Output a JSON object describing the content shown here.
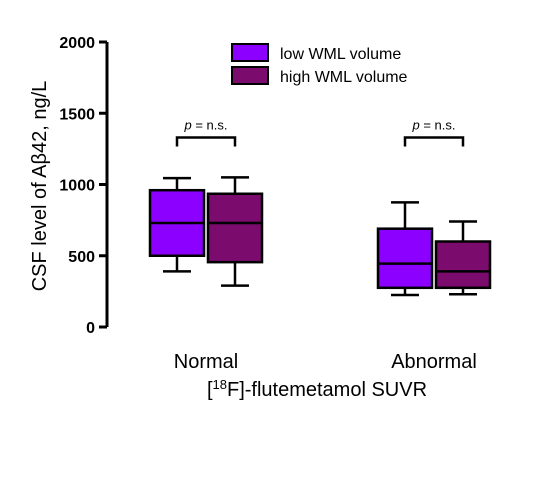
{
  "chart_data": {
    "type": "box",
    "ylabel_prefix": "CSF level of A",
    "ylabel_symbol": "β",
    "ylabel_suffix": "42, ng/L",
    "xlabel_open": "[",
    "xlabel_sup": "18",
    "xlabel_rest": "F]-flutemetamol SUVR",
    "ylim": [
      0,
      2000
    ],
    "yticks": [
      "0",
      "500",
      "1000",
      "1500",
      "2000"
    ],
    "ytick_values": [
      0,
      500,
      1000,
      1500,
      2000
    ],
    "categories": [
      "Normal",
      "Abnormal"
    ],
    "legend_position": "top-right",
    "series": [
      {
        "name": "low WML volume",
        "color": "#8B00FF",
        "boxes": [
          {
            "min": 390,
            "q1": 500,
            "median": 730,
            "q3": 960,
            "max": 1045
          },
          {
            "min": 225,
            "q1": 275,
            "median": 445,
            "q3": 690,
            "max": 875
          }
        ]
      },
      {
        "name": "high WML volume",
        "color": "#7B0C6E",
        "boxes": [
          {
            "min": 290,
            "q1": 455,
            "median": 730,
            "q3": 935,
            "max": 1050
          },
          {
            "min": 230,
            "q1": 275,
            "median": 390,
            "q3": 600,
            "max": 740
          }
        ]
      }
    ],
    "annotations": [
      {
        "p_symbol": "p",
        "p_text": " = n.s.",
        "category": "Normal",
        "y": 1330
      },
      {
        "p_symbol": "p",
        "p_text": " = n.s.",
        "category": "Abnormal",
        "y": 1330
      }
    ]
  }
}
